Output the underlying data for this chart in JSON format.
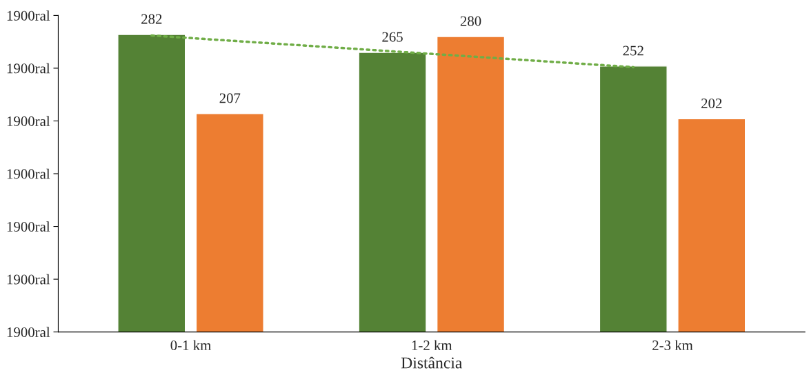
{
  "chart_data": {
    "type": "bar",
    "xlabel": "Distância",
    "categories": [
      "0-1 km",
      "1-2 km",
      "2-3 km"
    ],
    "series": [
      {
        "color": "#548235",
        "values": [
          282,
          265,
          252
        ],
        "value_labels": [
          "282",
          "265",
          "252"
        ]
      },
      {
        "color": "#ed7d31",
        "values": [
          207,
          280,
          202
        ],
        "value_labels": [
          "207",
          "280",
          "202"
        ]
      },
      {
        "type": "line",
        "color": "#70ad47",
        "line_style": "dotted",
        "marker": "none",
        "values": [
          281,
          266,
          251
        ]
      }
    ],
    "ylim": [
      0,
      300
    ],
    "annotations": [
      "1900ral",
      "1900ral",
      "1900ral",
      "1900ral",
      "1900ral",
      "1900ral",
      "1900ral"
    ],
    "grid": false,
    "legend": false
  }
}
